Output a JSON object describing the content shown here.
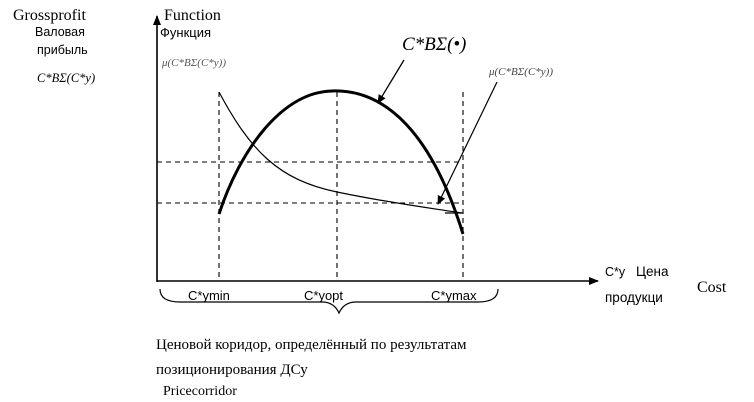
{
  "figure": {
    "y_axis": {
      "label_en": "Grossprofit",
      "label_ru_line1": "Валовая",
      "label_ru_line2": "прибыль",
      "label_formula": "C*BΣ(C*y)"
    },
    "function_label": {
      "en": "Function",
      "ru": "Функция"
    },
    "curves": {
      "profit_curve_label": "C*BΣ(•)",
      "left_membership_label": "μ(C*BΣ(C*y))",
      "right_membership_label": "μ(C*BΣ(C*y))"
    },
    "x_axis": {
      "label_symbol": "C*y",
      "label_ru_line1": "Цена",
      "label_ru_line2": "продукци",
      "label_en": "Cost"
    },
    "ticks": [
      {
        "label": "C*ymin"
      },
      {
        "label": "C*yopt"
      },
      {
        "label": "C*ymax"
      }
    ],
    "caption": {
      "ru_line1": "Ценовой коридор, определённый по результатам",
      "ru_line2": "позиционирования ДСу",
      "en": "Pricecorridor"
    }
  }
}
